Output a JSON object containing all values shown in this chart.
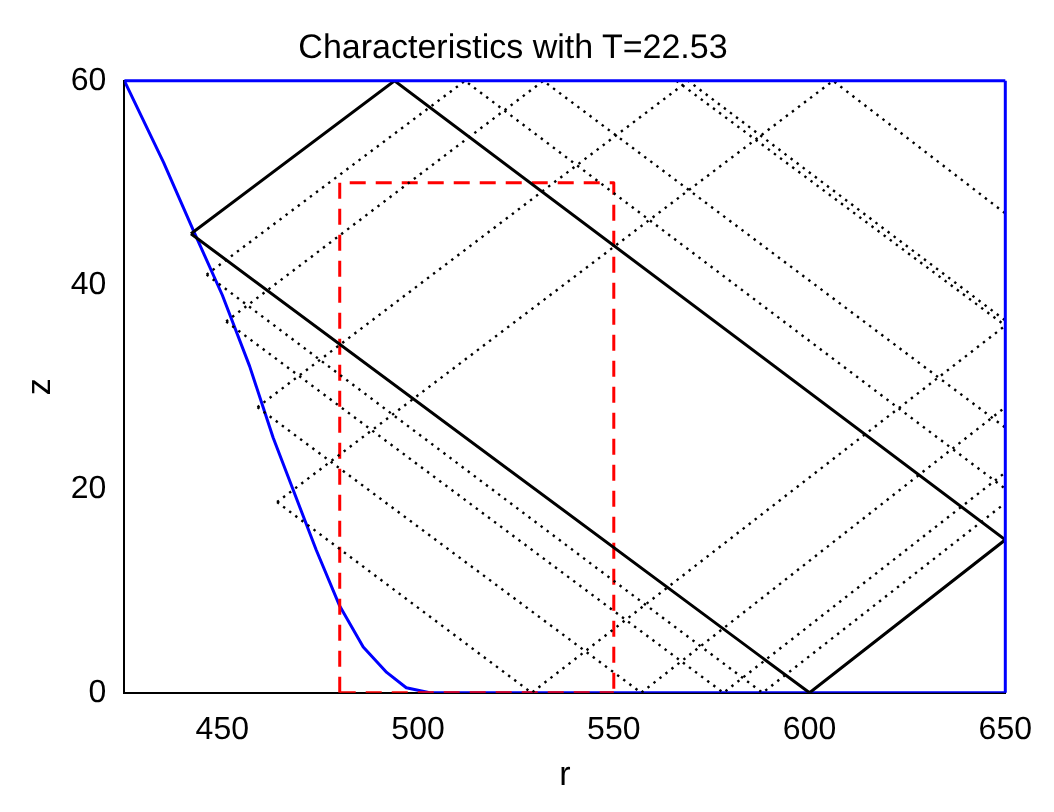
{
  "chart_data": {
    "type": "line",
    "title": "Characteristics with T=22.53",
    "xlabel": "r",
    "ylabel": "z",
    "xlim": [
      425,
      650
    ],
    "ylim": [
      0,
      60
    ],
    "xticks": [
      450,
      500,
      550,
      600,
      650
    ],
    "yticks": [
      0,
      20,
      40,
      60
    ],
    "grid": false,
    "legend": false,
    "marker": "none",
    "ref_lines": [
      {
        "axis": "y",
        "value": 60,
        "color": "#0000ff",
        "line_style": "solid"
      },
      {
        "axis": "x",
        "value": 650,
        "color": "#0000ff",
        "line_style": "solid"
      }
    ],
    "series": [
      {
        "color": "#0000ff",
        "line_style": "solid",
        "x": [
          425,
          435,
          443,
          450,
          457,
          463,
          468,
          474,
          480,
          486,
          492,
          497,
          503,
          650
        ],
        "values": [
          60,
          52,
          45,
          39,
          32,
          25,
          20,
          14,
          8.5,
          4.5,
          2,
          0.5,
          0,
          0
        ]
      },
      {
        "color": "#ff0000",
        "line_style": "dashed",
        "x": [
          480,
          480,
          550,
          550
        ],
        "values": [
          0,
          50,
          50,
          0
        ]
      },
      {
        "color": "#ff0000",
        "line_style": "dashed",
        "x": [
          480,
          550
        ],
        "values": [
          0,
          0
        ]
      },
      {
        "color": "#000000",
        "line_style": "dotted",
        "x": [
          446,
          588,
          650
        ],
        "values": [
          41,
          0,
          18.6
        ]
      },
      {
        "color": "#000000",
        "line_style": "dotted",
        "x": [
          451,
          578,
          650
        ],
        "values": [
          36.4,
          0,
          21.6
        ]
      },
      {
        "color": "#000000",
        "line_style": "dotted",
        "x": [
          459,
          557,
          650
        ],
        "values": [
          28,
          0,
          28
        ]
      },
      {
        "color": "#000000",
        "line_style": "dotted",
        "x": [
          566,
          650
        ],
        "values": [
          60,
          36
        ]
      },
      {
        "color": "#000000",
        "line_style": "dotted",
        "x": [
          464,
          529,
          650
        ],
        "values": [
          18.7,
          0,
          36
        ]
      },
      {
        "color": "#000000",
        "line_style": "dotted",
        "x": [
          446,
          512,
          650
        ],
        "values": [
          41,
          60,
          20
        ]
      },
      {
        "color": "#000000",
        "line_style": "dotted",
        "x": [
          451,
          532,
          650
        ],
        "values": [
          36.4,
          60,
          26
        ]
      },
      {
        "color": "#000000",
        "line_style": "dotted",
        "x": [
          459,
          569,
          650
        ],
        "values": [
          28,
          60,
          36.5
        ]
      },
      {
        "color": "#000000",
        "line_style": "dotted",
        "x": [
          464,
          606,
          650
        ],
        "values": [
          18.7,
          60,
          47
        ]
      },
      {
        "color": "#000000",
        "line_style": "solid",
        "x": [
          442,
          494,
          650
        ],
        "values": [
          45,
          60,
          15
        ]
      },
      {
        "color": "#000000",
        "line_style": "solid",
        "x": [
          442,
          600,
          650
        ],
        "values": [
          45,
          0,
          15
        ]
      }
    ]
  }
}
